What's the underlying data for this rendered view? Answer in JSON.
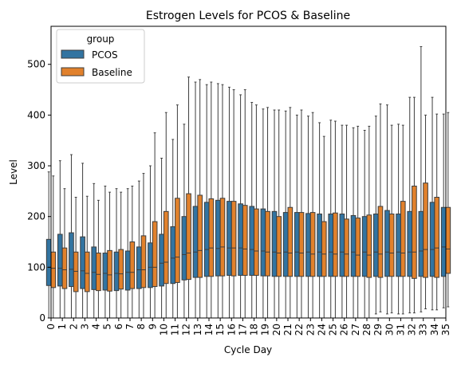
{
  "chart_data": {
    "type": "boxplot",
    "title": "Estrogen Levels for PCOS & Baseline",
    "xlabel": "Cycle Day",
    "ylabel": "Level",
    "ylim": [
      0,
      575
    ],
    "yticks": [
      0,
      100,
      200,
      300,
      400,
      500
    ],
    "categories": [
      "0",
      "1",
      "2",
      "3",
      "4",
      "5",
      "6",
      "7",
      "8",
      "9",
      "10",
      "11",
      "12",
      "13",
      "14",
      "15",
      "16",
      "17",
      "18",
      "19",
      "20",
      "21",
      "22",
      "23",
      "24",
      "25",
      "26",
      "27",
      "28",
      "29",
      "30",
      "31",
      "32",
      "33",
      "34",
      "35"
    ],
    "legend": {
      "title": "group",
      "placement": "top-left"
    },
    "grid": false,
    "series": [
      {
        "name": "PCOS",
        "color": "#3274a1",
        "q1": [
          64,
          63,
          62,
          58,
          56,
          55,
          54,
          55,
          58,
          60,
          63,
          68,
          75,
          80,
          82,
          83,
          84,
          84,
          84,
          83,
          82,
          82,
          82,
          82,
          82,
          82,
          82,
          82,
          82,
          82,
          82,
          82,
          82,
          82,
          82,
          82
        ],
        "median": [
          100,
          98,
          96,
          93,
          90,
          88,
          88,
          90,
          95,
          100,
          108,
          118,
          125,
          130,
          135,
          137,
          138,
          138,
          135,
          132,
          130,
          130,
          130,
          130,
          130,
          130,
          130,
          130,
          130,
          130,
          130,
          130,
          130,
          132,
          135,
          140
        ],
        "q3": [
          155,
          165,
          168,
          160,
          140,
          128,
          130,
          132,
          140,
          148,
          165,
          180,
          200,
          220,
          228,
          232,
          230,
          225,
          220,
          215,
          210,
          208,
          208,
          206,
          205,
          205,
          205,
          202,
          200,
          205,
          212,
          205,
          210,
          210,
          228,
          218
        ],
        "whisker_low": [
          0,
          0,
          0,
          0,
          0,
          0,
          0,
          0,
          0,
          0,
          0,
          0,
          0,
          0,
          0,
          0,
          0,
          0,
          0,
          0,
          0,
          0,
          0,
          0,
          0,
          0,
          0,
          0,
          0,
          8,
          8,
          8,
          10,
          12,
          16,
          20
        ],
        "whisker_high": [
          288,
          310,
          322,
          305,
          265,
          260,
          255,
          255,
          270,
          300,
          315,
          352,
          382,
          465,
          460,
          462,
          455,
          440,
          425,
          412,
          410,
          408,
          400,
          398,
          385,
          390,
          380,
          375,
          370,
          398,
          420,
          382,
          435,
          535,
          435,
          402
        ]
      },
      {
        "name": "Baseline",
        "color": "#e1812c",
        "q1": [
          60,
          58,
          52,
          52,
          54,
          53,
          57,
          58,
          60,
          62,
          68,
          70,
          76,
          80,
          82,
          83,
          83,
          84,
          84,
          83,
          82,
          82,
          82,
          82,
          82,
          82,
          82,
          82,
          80,
          80,
          82,
          82,
          78,
          80,
          80,
          88
        ],
        "median": [
          98,
          95,
          92,
          88,
          86,
          85,
          87,
          90,
          95,
          100,
          110,
          120,
          128,
          133,
          138,
          140,
          138,
          136,
          132,
          130,
          128,
          128,
          128,
          126,
          126,
          126,
          126,
          124,
          124,
          126,
          128,
          128,
          130,
          135,
          138,
          136
        ],
        "q3": [
          130,
          138,
          130,
          130,
          128,
          133,
          135,
          150,
          162,
          190,
          210,
          236,
          245,
          242,
          235,
          236,
          230,
          222,
          215,
          210,
          200,
          218,
          208,
          208,
          190,
          207,
          195,
          197,
          203,
          220,
          205,
          230,
          260,
          266,
          238,
          218
        ],
        "whisker_low": [
          0,
          0,
          0,
          0,
          0,
          0,
          0,
          0,
          0,
          0,
          0,
          0,
          0,
          0,
          0,
          0,
          0,
          0,
          0,
          0,
          0,
          0,
          0,
          0,
          0,
          0,
          0,
          0,
          0,
          12,
          10,
          8,
          10,
          18,
          16,
          22
        ],
        "whisker_high": [
          280,
          255,
          238,
          240,
          232,
          248,
          248,
          260,
          285,
          365,
          405,
          420,
          475,
          470,
          465,
          460,
          450,
          450,
          420,
          415,
          410,
          415,
          410,
          405,
          358,
          388,
          380,
          378,
          378,
          422,
          380,
          380,
          435,
          400,
          402,
          405
        ]
      }
    ]
  }
}
